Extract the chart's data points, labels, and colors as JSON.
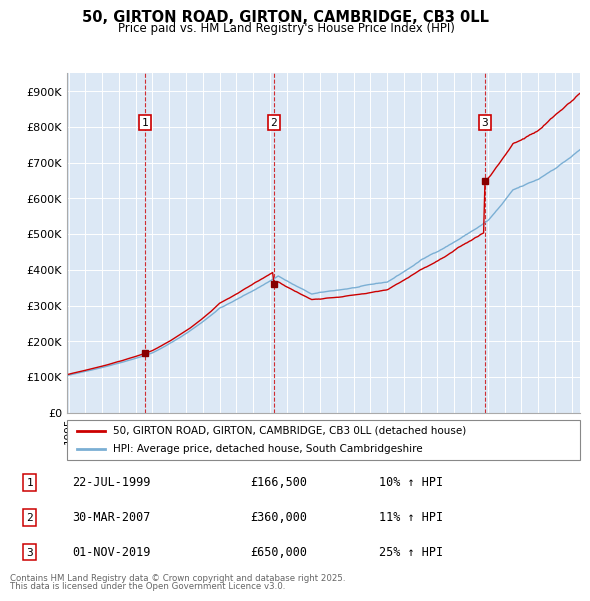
{
  "title": "50, GIRTON ROAD, GIRTON, CAMBRIDGE, CB3 0LL",
  "subtitle": "Price paid vs. HM Land Registry's House Price Index (HPI)",
  "legend_line1": "50, GIRTON ROAD, GIRTON, CAMBRIDGE, CB3 0LL (detached house)",
  "legend_line2": "HPI: Average price, detached house, South Cambridgeshire",
  "sale_color": "#cc0000",
  "hpi_color": "#7bafd4",
  "background_color": "#ddeeff",
  "plot_bg": "#dce8f5",
  "sale_transactions": [
    {
      "date": 1999.55,
      "price": 166500,
      "label": "1"
    },
    {
      "date": 2007.24,
      "price": 360000,
      "label": "2"
    },
    {
      "date": 2019.83,
      "price": 650000,
      "label": "3"
    }
  ],
  "footer_line1": "Contains HM Land Registry data © Crown copyright and database right 2025.",
  "footer_line2": "This data is licensed under the Open Government Licence v3.0.",
  "table_entries": [
    {
      "num": "1",
      "date": "22-JUL-1999",
      "price": "£166,500",
      "change": "10% ↑ HPI"
    },
    {
      "num": "2",
      "date": "30-MAR-2007",
      "price": "£360,000",
      "change": "11% ↑ HPI"
    },
    {
      "num": "3",
      "date": "01-NOV-2019",
      "price": "£650,000",
      "change": "25% ↑ HPI"
    }
  ],
  "ylim": [
    0,
    950000
  ],
  "xlim_start": 1994.9,
  "xlim_end": 2025.5,
  "yticks": [
    0,
    100000,
    200000,
    300000,
    400000,
    500000,
    600000,
    700000,
    800000,
    900000
  ],
  "ytick_labels": [
    "£0",
    "£100K",
    "£200K",
    "£300K",
    "£400K",
    "£500K",
    "£600K",
    "£700K",
    "£800K",
    "£900K"
  ]
}
